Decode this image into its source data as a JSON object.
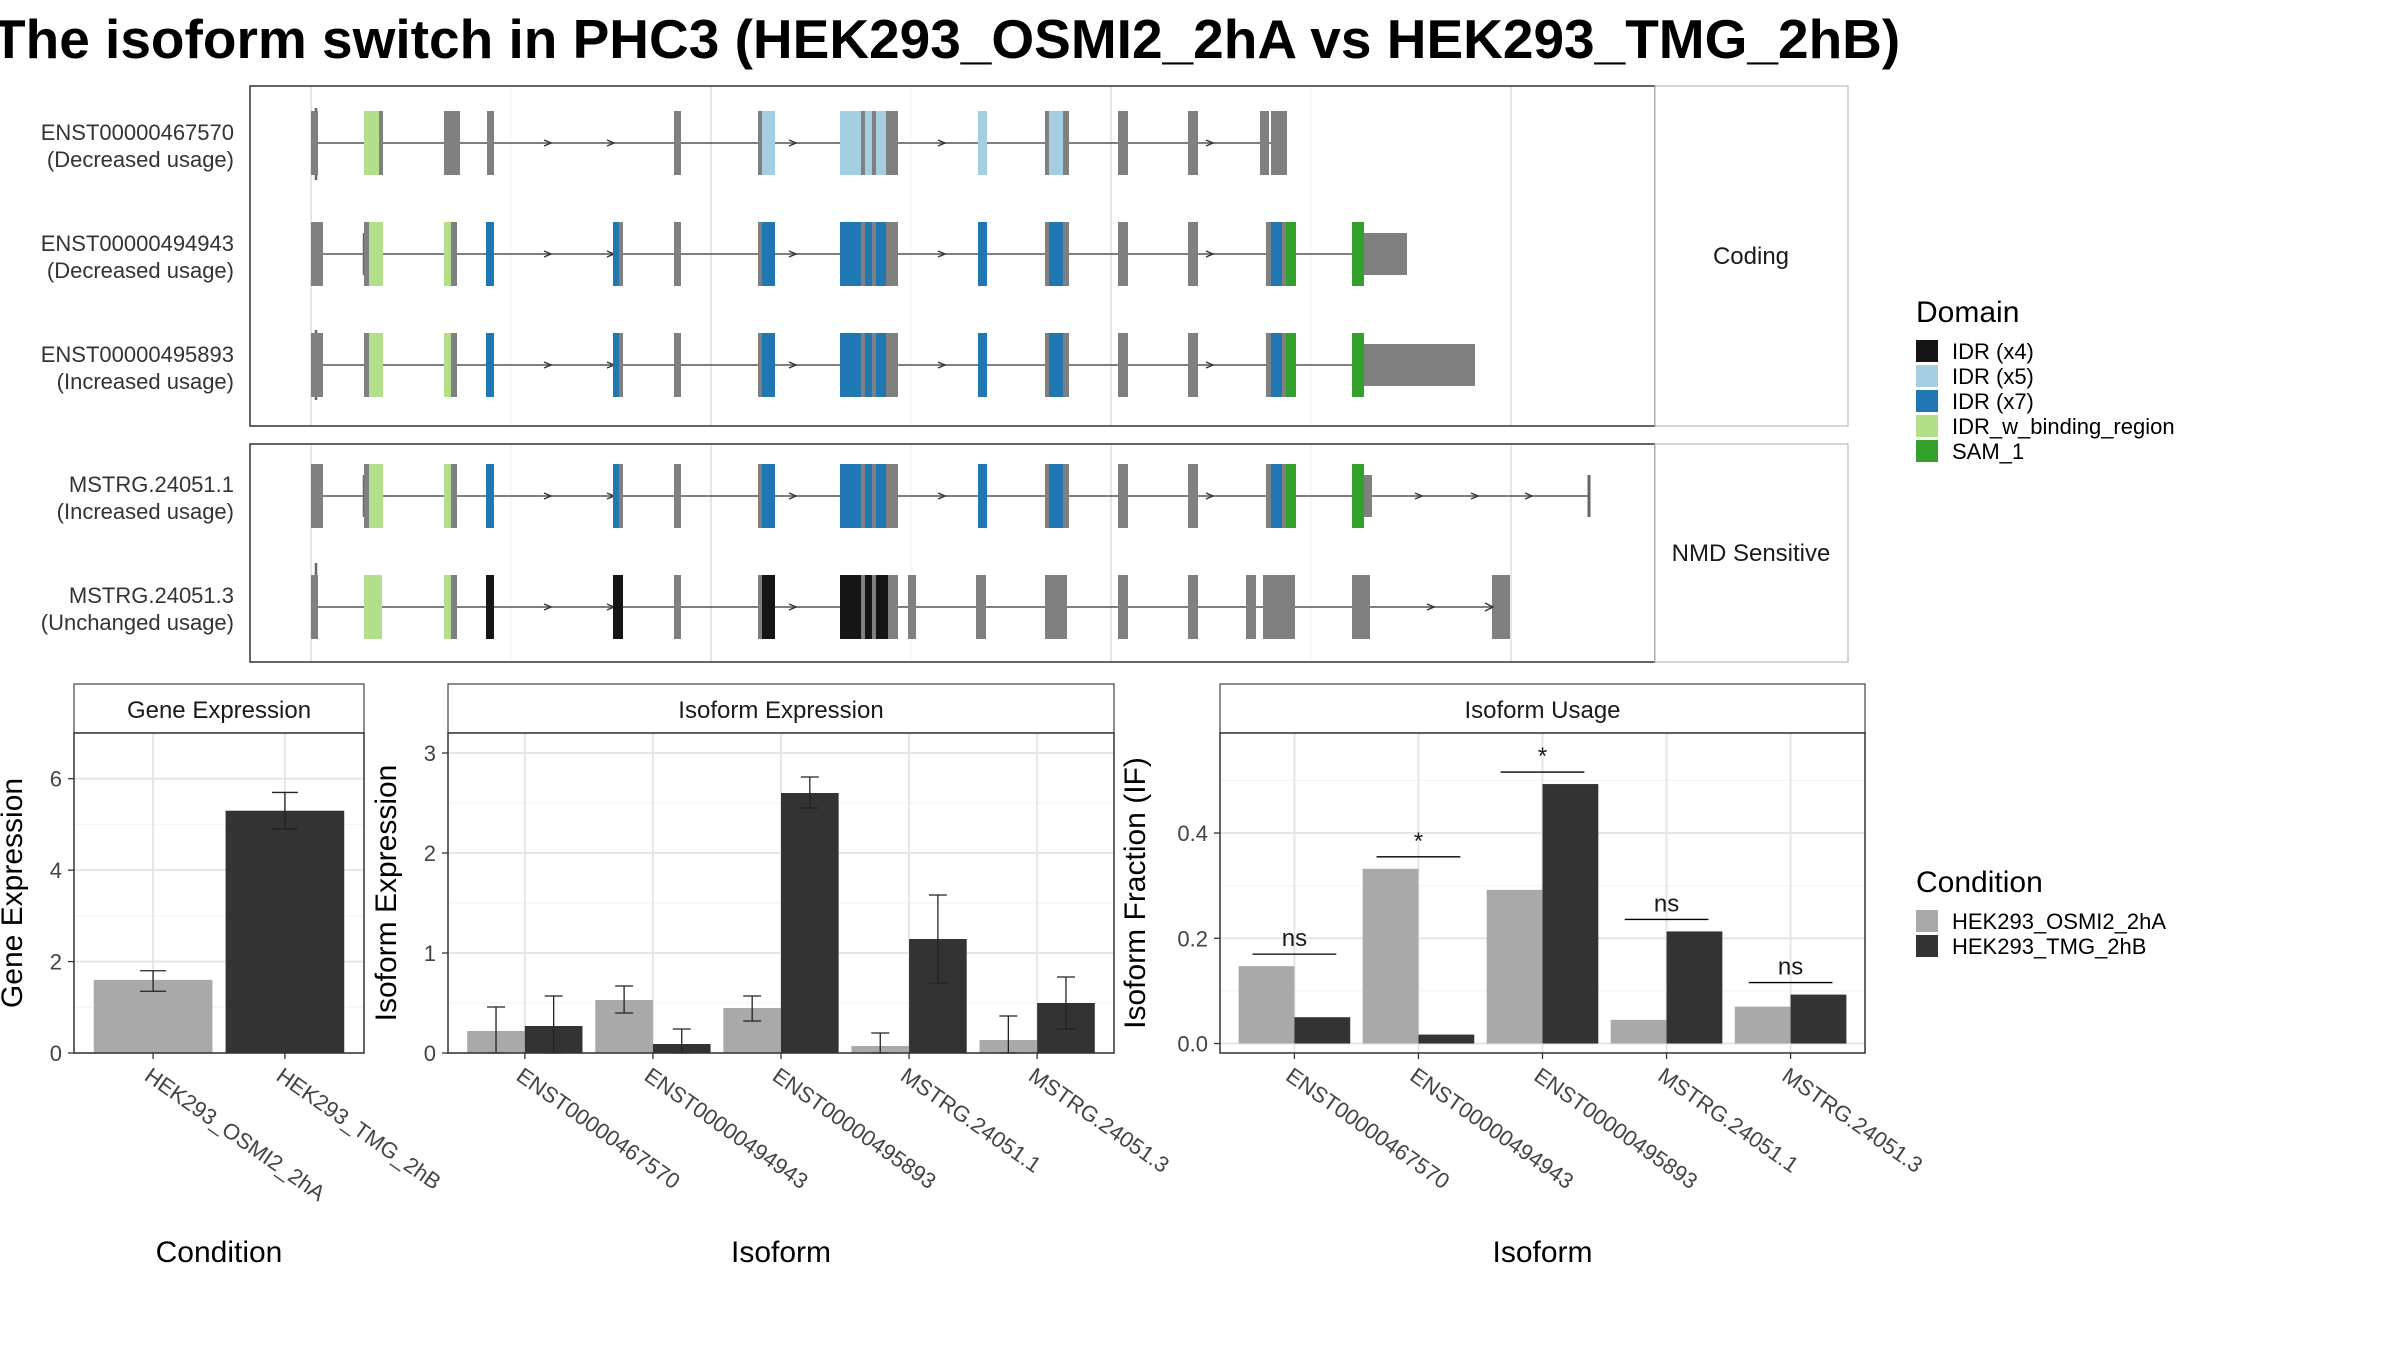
{
  "title": "The isoform switch in PHC3 (HEK293_OSMI2_2hA vs HEK293_TMG_2hB)",
  "colors": {
    "IDR (x4)": "#151515",
    "IDR (x5)": "#a6cee3",
    "IDR (x7)": "#1f78b4",
    "IDR_w_binding_region": "#b2df8a",
    "SAM_1": "#33a02c",
    "exon": "#808080",
    "HEK293_OSMI2_2hA": "#a9a9a9",
    "HEK293_TMG_2hB": "#333333"
  },
  "structure": {
    "facets": [
      {
        "label": "Coding",
        "transcripts": [
          {
            "name": "ENST00000467570",
            "usage": "(Decreased usage)",
            "palette": "light"
          },
          {
            "name": "ENST00000494943",
            "usage": "(Decreased usage)",
            "palette": "blue"
          },
          {
            "name": "ENST00000495893",
            "usage": "(Increased usage)",
            "palette": "blue"
          }
        ]
      },
      {
        "label": "NMD Sensitive",
        "transcripts": [
          {
            "name": "MSTRG.24051.1",
            "usage": "(Increased usage)",
            "palette": "blue"
          },
          {
            "name": "MSTRG.24051.3",
            "usage": "(Unchanged usage)",
            "palette": "black"
          }
        ]
      }
    ]
  },
  "legend_domain": {
    "title": "Domain",
    "items": [
      "IDR (x4)",
      "IDR (x5)",
      "IDR (x7)",
      "IDR_w_binding_region",
      "SAM_1"
    ]
  },
  "legend_condition": {
    "title": "Condition",
    "items": [
      "HEK293_OSMI2_2hA",
      "HEK293_TMG_2hB"
    ]
  },
  "chart_data": [
    {
      "type": "bar",
      "title": "Gene Expression",
      "xlabel": "Condition",
      "ylabel": "Gene Expression",
      "categories": [
        "HEK293_OSMI2_2hA",
        "HEK293_TMG_2hB"
      ],
      "values": [
        1.6,
        5.3
      ],
      "errors": [
        [
          1.35,
          1.8
        ],
        [
          4.9,
          5.7
        ]
      ],
      "ylim": [
        0,
        7
      ],
      "yticks": [
        0,
        2,
        4,
        6
      ]
    },
    {
      "type": "bar",
      "title": "Isoform Expression",
      "xlabel": "Isoform",
      "ylabel": "Isoform Expression",
      "categories": [
        "ENST00000467570",
        "ENST00000494943",
        "ENST00000495893",
        "MSTRG.24051.1",
        "MSTRG.24051.3"
      ],
      "series": [
        {
          "name": "HEK293_OSMI2_2hA",
          "values": [
            0.22,
            0.53,
            0.45,
            0.07,
            0.13
          ],
          "errors": [
            [
              0.0,
              0.46
            ],
            [
              0.4,
              0.67
            ],
            [
              0.32,
              0.57
            ],
            [
              0.0,
              0.2
            ],
            [
              0.0,
              0.37
            ]
          ]
        },
        {
          "name": "HEK293_TMG_2hB",
          "values": [
            0.27,
            0.09,
            2.6,
            1.14,
            0.5
          ],
          "errors": [
            [
              0.0,
              0.57
            ],
            [
              0.0,
              0.24
            ],
            [
              2.45,
              2.76
            ],
            [
              0.7,
              1.58
            ],
            [
              0.24,
              0.76
            ]
          ]
        }
      ],
      "ylim": [
        0,
        3.2
      ],
      "yticks": [
        0,
        1,
        2,
        3
      ]
    },
    {
      "type": "bar",
      "title": "Isoform Usage",
      "xlabel": "Isoform",
      "ylabel": "Isoform Fraction (IF)",
      "categories": [
        "ENST00000467570",
        "ENST00000494943",
        "ENST00000495893",
        "MSTRG.24051.1",
        "MSTRG.24051.3"
      ],
      "series": [
        {
          "name": "HEK293_OSMI2_2hA",
          "values": [
            0.147,
            0.332,
            0.292,
            0.045,
            0.07
          ]
        },
        {
          "name": "HEK293_TMG_2hB",
          "values": [
            0.05,
            0.017,
            0.493,
            0.213,
            0.093
          ]
        }
      ],
      "significance": [
        "ns",
        "*",
        "*",
        "ns",
        "ns"
      ],
      "ylim": [
        -0.018,
        0.59
      ],
      "yticks": [
        0.0,
        0.2,
        0.4
      ],
      "ytick_labels": [
        "0.0",
        "0.2",
        "0.4"
      ]
    }
  ]
}
